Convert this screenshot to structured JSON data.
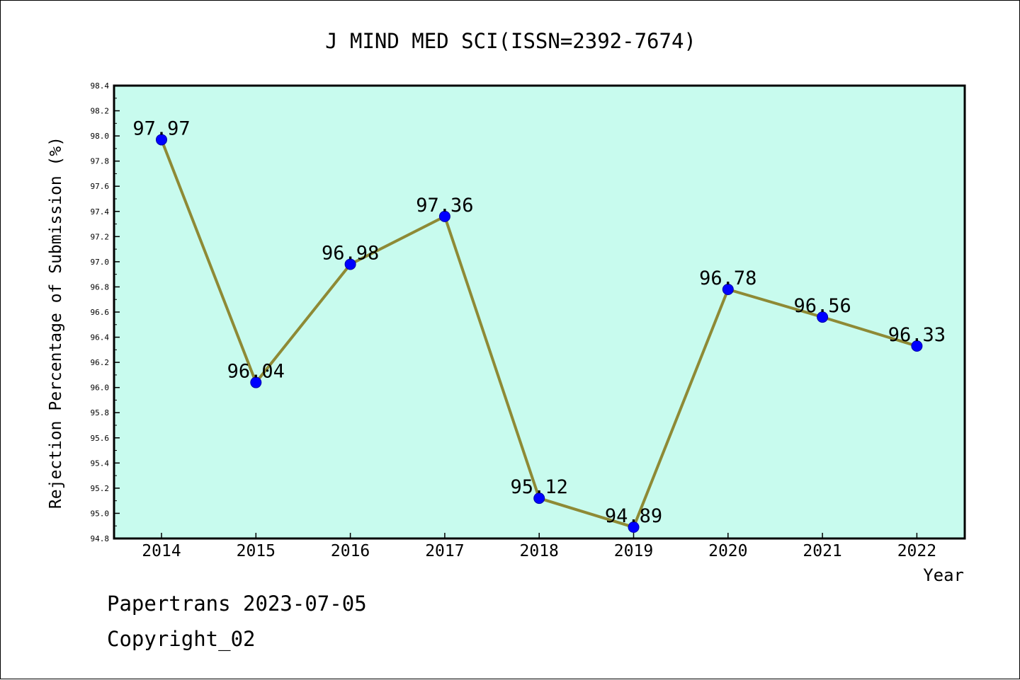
{
  "colors": {
    "plot_background": "#c8fbee",
    "line": "#8e8a35",
    "marker": "#0000ff",
    "marker_edge": "#0000aa"
  },
  "chart_data": {
    "type": "line",
    "title": "J MIND MED SCI(ISSN=2392-7674)",
    "xlabel": "Year",
    "ylabel": "Rejection Percentage of Submission (%)",
    "ylim": [
      94.8,
      98.4
    ],
    "ytick_step": 0.2,
    "ytick_minor_step": 0.1,
    "grid": false,
    "categories": [
      "2014",
      "2015",
      "2016",
      "2017",
      "2018",
      "2019",
      "2020",
      "2021",
      "2022"
    ],
    "series": [
      {
        "values": [
          97.97,
          96.04,
          96.98,
          97.36,
          95.12,
          94.89,
          96.78,
          96.56,
          96.33
        ],
        "labels": [
          "97.97",
          "96.04",
          "96.98",
          "97.36",
          "95.12",
          "94.89",
          "96.78",
          "96.56",
          "96.33"
        ]
      }
    ]
  },
  "footer": {
    "line1": "Papertrans 2023-07-05",
    "line2": "Copyright_02"
  }
}
